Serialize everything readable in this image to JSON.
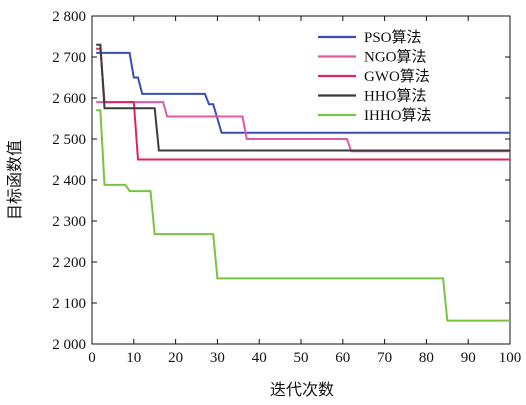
{
  "chart_data": {
    "type": "line",
    "title": "",
    "xlabel": "迭代次数",
    "ylabel": "目标函数值",
    "xlim": [
      0,
      100
    ],
    "ylim": [
      2000,
      2800
    ],
    "xticks": [
      0,
      10,
      20,
      30,
      40,
      50,
      60,
      70,
      80,
      90,
      100
    ],
    "yticks": [
      2000,
      2100,
      2200,
      2300,
      2400,
      2500,
      2600,
      2700,
      2800
    ],
    "ytick_labels": [
      "2 000",
      "2 100",
      "2 200",
      "2 300",
      "2 400",
      "2 500",
      "2 600",
      "2 700",
      "2 800"
    ],
    "grid": false,
    "legend_position": "top-right",
    "series": [
      {
        "name": "PSO算法",
        "color": "#3a4cb8",
        "x": [
          1,
          2,
          9,
          10,
          11,
          12,
          27,
          28,
          29,
          30,
          31,
          100
        ],
        "y": [
          2710,
          2710,
          2710,
          2650,
          2650,
          2610,
          2610,
          2585,
          2585,
          2550,
          2515,
          2515
        ]
      },
      {
        "name": "NGO算法",
        "color": "#e05aa5",
        "x": [
          1,
          2,
          17,
          18,
          36,
          37,
          61,
          62,
          100
        ],
        "y": [
          2590,
          2590,
          2590,
          2555,
          2555,
          2500,
          2500,
          2470,
          2470
        ]
      },
      {
        "name": "GWO算法",
        "color": "#e0245e",
        "x": [
          1,
          2,
          3,
          4,
          10,
          11,
          100
        ],
        "y": [
          2720,
          2720,
          2590,
          2590,
          2590,
          2450,
          2450
        ]
      },
      {
        "name": "HHO算法",
        "color": "#3c3c3c",
        "x": [
          1,
          2,
          3,
          4,
          15,
          16,
          100
        ],
        "y": [
          2730,
          2730,
          2575,
          2575,
          2575,
          2472,
          2472
        ]
      },
      {
        "name": "IHHO算法",
        "color": "#7cc242",
        "x": [
          1,
          2,
          3,
          8,
          9,
          14,
          15,
          29,
          30,
          84,
          85,
          100
        ],
        "y": [
          2570,
          2570,
          2388,
          2388,
          2373,
          2373,
          2268,
          2268,
          2160,
          2160,
          2057,
          2057
        ]
      }
    ]
  }
}
